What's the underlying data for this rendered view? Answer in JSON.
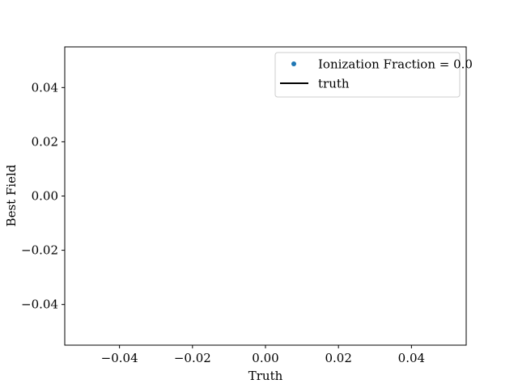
{
  "chart_data": {
    "type": "scatter",
    "title": "",
    "xlabel": "Truth",
    "ylabel": "Best Field",
    "xlim": [
      -0.055,
      0.055
    ],
    "ylim": [
      -0.055,
      0.055
    ],
    "xticks": [
      -0.04,
      -0.02,
      0.0,
      0.02,
      0.04
    ],
    "yticks": [
      -0.04,
      -0.02,
      0.0,
      0.02,
      0.04
    ],
    "xtick_labels": [
      "−0.04",
      "−0.02",
      "0.00",
      "0.02",
      "0.04"
    ],
    "ytick_labels": [
      "−0.04",
      "−0.02",
      "0.00",
      "0.02",
      "0.04"
    ],
    "grid": false,
    "legend_position": "top-right",
    "series": [
      {
        "name": "Ionization Fraction = 0.0",
        "kind": "scatter",
        "color": "#1f77b4",
        "x": [],
        "y": []
      },
      {
        "name": "truth",
        "kind": "line",
        "color": "#000000",
        "x": [],
        "y": []
      }
    ]
  }
}
